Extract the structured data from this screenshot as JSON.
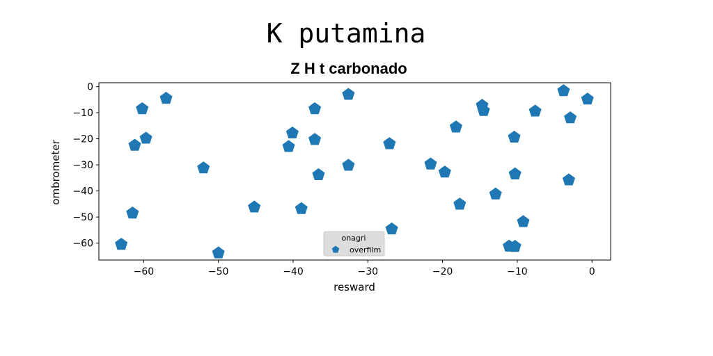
{
  "chart_data": {
    "type": "scatter",
    "suptitle": "K putamina",
    "title": "Z H t carbonado",
    "xlabel": "resward",
    "ylabel": "ombrometer",
    "xlim": [
      -66,
      2.5
    ],
    "ylim": [
      -66.5,
      1.5
    ],
    "xticks": [
      -60,
      -50,
      -40,
      -30,
      -20,
      -10,
      0
    ],
    "yticks": [
      0,
      -10,
      -20,
      -30,
      -40,
      -50,
      -60
    ],
    "grid": false,
    "legend": {
      "title": "onagri",
      "placement": "lower-center"
    },
    "marker": "pentagon",
    "color": "#1f77b4",
    "series": [
      {
        "name": "overfilm",
        "points": [
          [
            -63,
            -60.5
          ],
          [
            -61.5,
            -48.5
          ],
          [
            -61.2,
            -22.5
          ],
          [
            -60.2,
            -8.5
          ],
          [
            -59.7,
            -19.8
          ],
          [
            -57,
            -4.5
          ],
          [
            -52,
            -31.2
          ],
          [
            -50,
            -63.8
          ],
          [
            -45.2,
            -46.2
          ],
          [
            -40.6,
            -23
          ],
          [
            -40.1,
            -17.8
          ],
          [
            -38.9,
            -46.8
          ],
          [
            -37.1,
            -8.5
          ],
          [
            -37.1,
            -20.3
          ],
          [
            -36.6,
            -33.8
          ],
          [
            -32.6,
            -3
          ],
          [
            -32.6,
            -30.2
          ],
          [
            -27.1,
            -21.9
          ],
          [
            -26.8,
            -54.6
          ],
          [
            -21.6,
            -29.7
          ],
          [
            -19.7,
            -32.8
          ],
          [
            -18.2,
            -15.5
          ],
          [
            -17.7,
            -45.1
          ],
          [
            -14.7,
            -7.2
          ],
          [
            -14.5,
            -9.2
          ],
          [
            -12.9,
            -41.2
          ],
          [
            -11.1,
            -61.2
          ],
          [
            -10.4,
            -19.4
          ],
          [
            -10.3,
            -61.3
          ],
          [
            -10.3,
            -33.5
          ],
          [
            -9.2,
            -51.8
          ],
          [
            -7.6,
            -9.4
          ],
          [
            -3.8,
            -1.6
          ],
          [
            -3.1,
            -35.8
          ],
          [
            -2.9,
            -12
          ],
          [
            -0.6,
            -4.8
          ]
        ]
      }
    ]
  }
}
